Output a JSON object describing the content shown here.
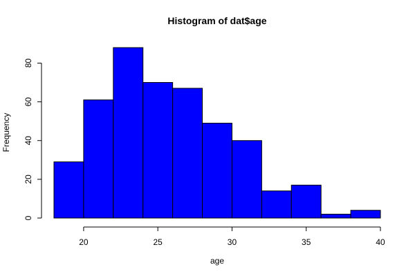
{
  "chart_data": {
    "type": "bar",
    "title": "Histogram of dat$age",
    "xlabel": "age",
    "ylabel": "Frequency",
    "bin_edges": [
      18,
      20,
      22,
      24,
      26,
      28,
      30,
      32,
      34,
      36,
      38,
      40
    ],
    "values": [
      29,
      61,
      88,
      70,
      67,
      49,
      40,
      14,
      17,
      2,
      4
    ],
    "xlim": [
      18,
      40
    ],
    "ylim": [
      0,
      88
    ],
    "x_ticks": [
      20,
      25,
      30,
      35,
      40
    ],
    "y_ticks": [
      0,
      20,
      40,
      60,
      80
    ],
    "bar_color": "#0000ff",
    "bar_border_color": "#000000",
    "grid": false,
    "legend": "none"
  }
}
